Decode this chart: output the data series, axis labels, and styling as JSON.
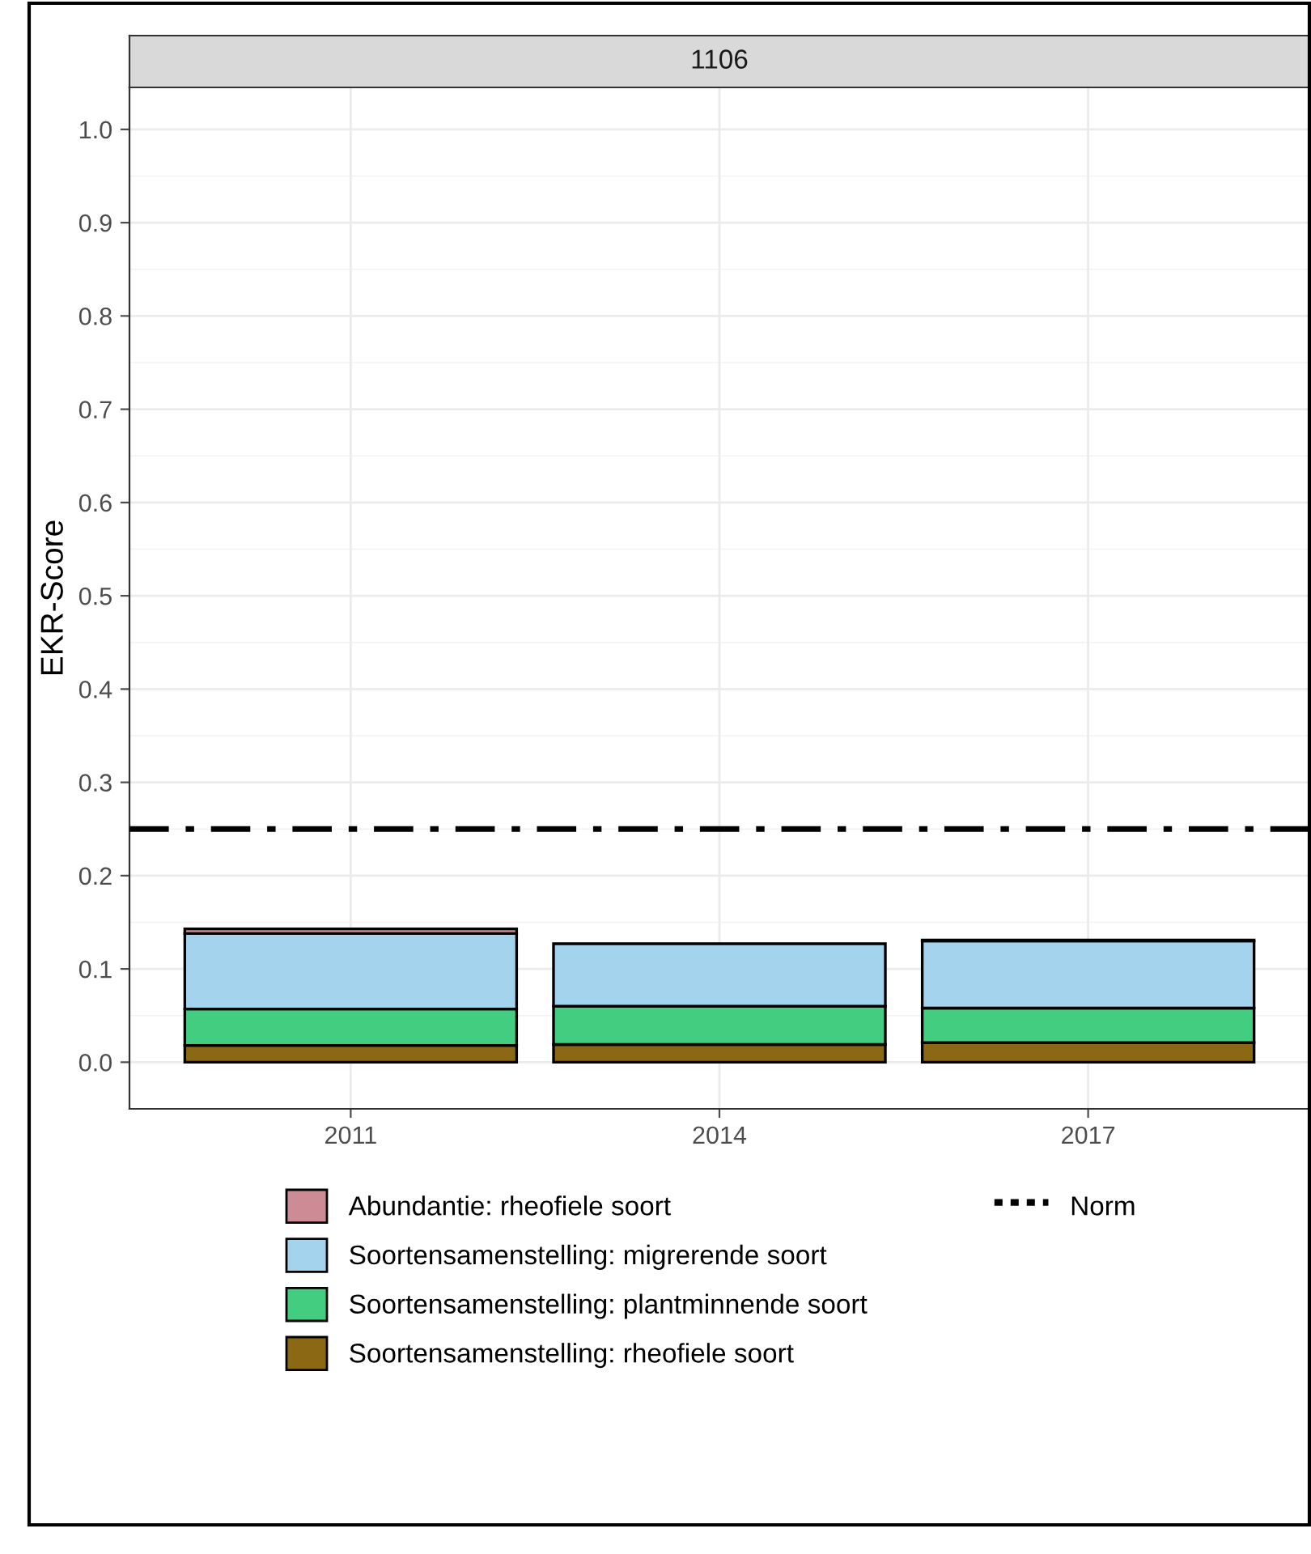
{
  "chart_data": {
    "type": "bar",
    "title": "1106",
    "ylabel": "EKR-Score",
    "categories": [
      "2011",
      "2014",
      "2017"
    ],
    "stacked": true,
    "series": [
      {
        "name": "Soortensamenstelling: rheofiele soort",
        "color": "#8b6914",
        "values": [
          0.018,
          0.019,
          0.021
        ]
      },
      {
        "name": "Soortensamenstelling: plantminnende soort",
        "color": "#43cd80",
        "values": [
          0.039,
          0.041,
          0.037
        ]
      },
      {
        "name": "Soortensamenstelling: migrerende soort",
        "color": "#a4d3ee",
        "values": [
          0.081,
          0.067,
          0.072
        ]
      },
      {
        "name": "Abundantie: rheofiele soort",
        "color": "#cd8c95",
        "values": [
          0.005,
          null,
          0.001
        ]
      }
    ],
    "ylim": [
      -0.05,
      1.045
    ],
    "yticks": [
      {
        "value": 0,
        "label": "0.0"
      },
      {
        "value": 0.1,
        "label": "0.1"
      },
      {
        "value": 0.2,
        "label": "0.2"
      },
      {
        "value": 0.3,
        "label": "0.3"
      },
      {
        "value": 0.4,
        "label": "0.4"
      },
      {
        "value": 0.5,
        "label": "0.5"
      },
      {
        "value": 0.6,
        "label": "0.6"
      },
      {
        "value": 0.7,
        "label": "0.7"
      },
      {
        "value": 0.8,
        "label": "0.8"
      },
      {
        "value": 0.9,
        "label": "0.9"
      },
      {
        "value": 1,
        "label": "1.0"
      }
    ],
    "ref_lines": [
      {
        "axis": "y",
        "value": 0.25,
        "label": "Norm",
        "color": "#000000",
        "line_style": "dashed"
      }
    ],
    "grid": true,
    "legend": "bottom"
  }
}
